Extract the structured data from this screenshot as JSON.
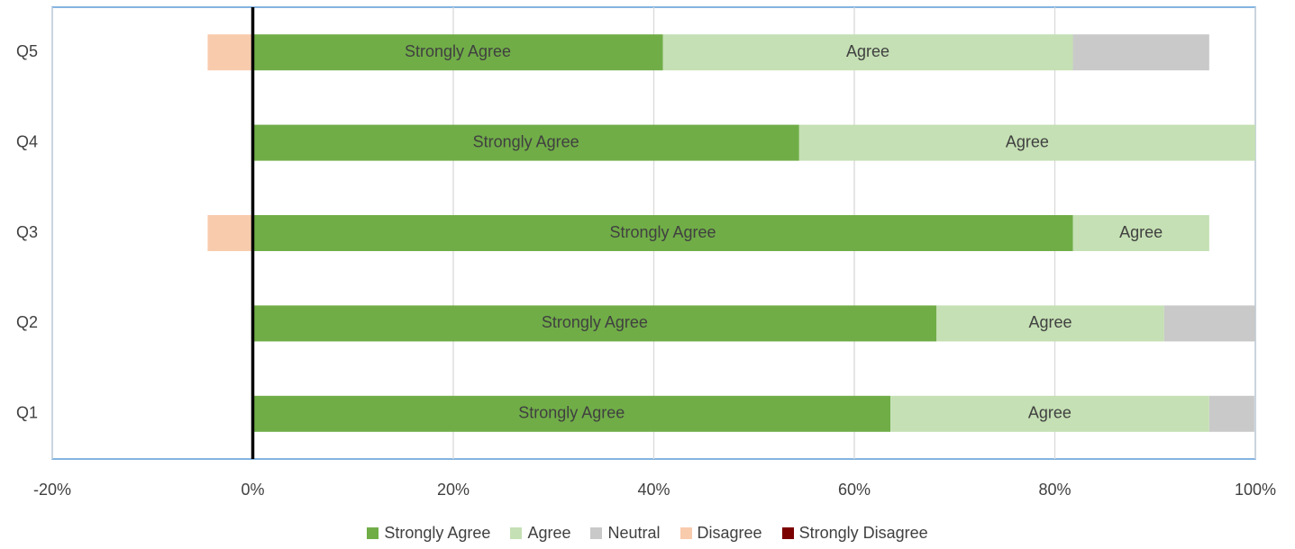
{
  "chart_data": {
    "type": "diverging-bar",
    "categories": [
      "Q1",
      "Q2",
      "Q3",
      "Q4",
      "Q5"
    ],
    "series": [
      {
        "name": "Strongly Agree",
        "color": "#70ad47",
        "values": [
          63.6,
          68.2,
          81.8,
          54.5,
          40.9
        ]
      },
      {
        "name": "Agree",
        "color": "#c5e0b4",
        "values": [
          31.8,
          22.7,
          13.6,
          45.5,
          40.9
        ]
      },
      {
        "name": "Neutral",
        "color": "#c9c9c9",
        "values": [
          4.5,
          9.1,
          0,
          0,
          13.6
        ]
      },
      {
        "name": "Disagree",
        "color": "#f8cbad",
        "values": [
          0,
          0,
          -4.5,
          0,
          -4.5
        ]
      },
      {
        "name": "Strongly Disagree",
        "color": "#7b0000",
        "values": [
          0,
          0,
          0,
          0,
          0
        ]
      }
    ],
    "xlim": [
      -20,
      100
    ],
    "xticks": [
      {
        "value": -20,
        "label": "-20%"
      },
      {
        "value": 0,
        "label": "0%"
      },
      {
        "value": 20,
        "label": "20%"
      },
      {
        "value": 40,
        "label": "40%"
      },
      {
        "value": 60,
        "label": "60%"
      },
      {
        "value": 80,
        "label": "80%"
      },
      {
        "value": 100,
        "label": "100%"
      }
    ],
    "grid": true,
    "legend": "bottom"
  }
}
